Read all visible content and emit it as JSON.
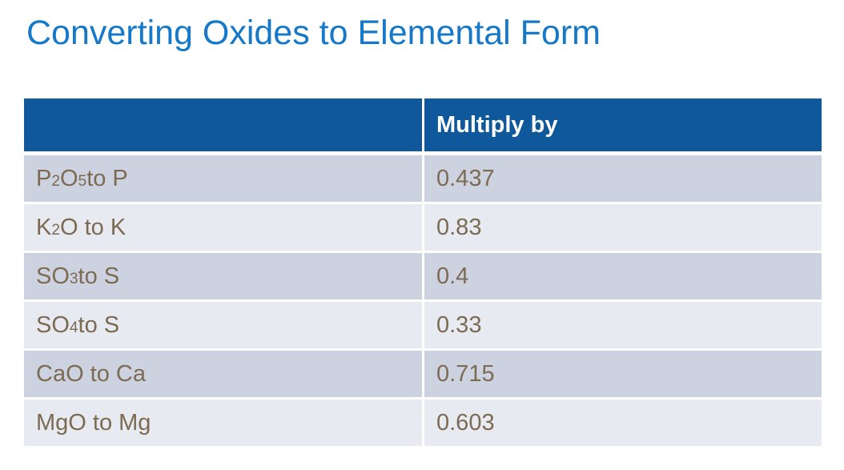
{
  "title": "Converting Oxides to Elemental Form",
  "colors": {
    "title": "#1578C8",
    "header_bg": "#0E589B",
    "header_text": "#FFFFFF",
    "row_dark": "#CDD2E0",
    "row_light": "#E7EAF1",
    "cell_text": "#7C6A52"
  },
  "table": {
    "header": [
      "",
      "Multiply by"
    ],
    "rows": [
      {
        "label_parts": [
          {
            "text": "P"
          },
          {
            "sub": "2"
          },
          {
            "text": "O"
          },
          {
            "sub": "5"
          },
          {
            "text": " to P"
          }
        ],
        "value": "0.437"
      },
      {
        "label_parts": [
          {
            "text": "K"
          },
          {
            "sub": "2"
          },
          {
            "text": "O to K"
          }
        ],
        "value": "0.83"
      },
      {
        "label_parts": [
          {
            "text": "SO"
          },
          {
            "sub": "3"
          },
          {
            "text": " to S"
          }
        ],
        "value": "0.4"
      },
      {
        "label_parts": [
          {
            "text": "SO"
          },
          {
            "sub": "4"
          },
          {
            "text": " to S"
          }
        ],
        "value": "0.33"
      },
      {
        "label_parts": [
          {
            "text": "CaO to Ca"
          }
        ],
        "value": "0.715"
      },
      {
        "label_parts": [
          {
            "text": "MgO to Mg"
          }
        ],
        "value": "0.603"
      }
    ]
  }
}
